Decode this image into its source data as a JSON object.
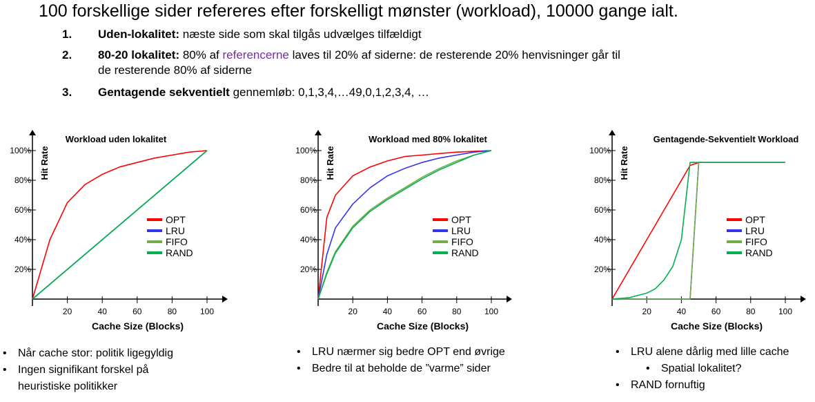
{
  "heading": "100 forskellige sider refereres efter forskelligt mønster (workload), 10000 gange ialt.",
  "list": [
    {
      "num": "1.",
      "bold": "Uden-lokalitet:",
      "text": " næste side som skal tilgås udvælges tilfældigt"
    },
    {
      "num": "2.",
      "bold": "80-20 lokalitet:",
      "text_a": " 80% af ",
      "link": "referencerne",
      "text_b": " laves til  20% af siderne: de resterende 20% henvisninger går til",
      "text_c": "de resterende 80% af siderne"
    },
    {
      "num": "3.",
      "bold": "Gentagende sekventielt",
      "text": " gennemløb:  0,1,3,4,…49,0,1,2,3,4, …"
    }
  ],
  "colors": {
    "OPT": "#ff0000",
    "LRU": "#3333ee",
    "FIFO": "#70ad47",
    "RAND": "#00b050",
    "link": "#7030a0"
  },
  "chart_data": [
    {
      "type": "line",
      "title": "Workload uden lokalitet",
      "xlabel": "Cache Size (Blocks)",
      "ylabel": "Hit Rate",
      "x_ticks": [
        "20",
        "40",
        "60",
        "80",
        "100"
      ],
      "y_ticks": [
        "20%",
        "40%",
        "60%",
        "80%",
        "100%"
      ],
      "xlim": [
        0,
        100
      ],
      "ylim": [
        0,
        100
      ],
      "legend": "right",
      "x": [
        0,
        10,
        20,
        30,
        40,
        50,
        60,
        70,
        80,
        90,
        100
      ],
      "series": [
        {
          "name": "OPT",
          "values": [
            0,
            40,
            65,
            77,
            84,
            89,
            92,
            95,
            97,
            99,
            100
          ]
        },
        {
          "name": "LRU",
          "values": [
            0,
            10,
            20,
            30,
            40,
            50,
            60,
            70,
            80,
            90,
            100
          ]
        },
        {
          "name": "FIFO",
          "values": [
            0,
            10,
            20,
            30,
            40,
            50,
            60,
            70,
            80,
            90,
            100
          ]
        },
        {
          "name": "RAND",
          "values": [
            0,
            10,
            20,
            30,
            40,
            50,
            60,
            70,
            80,
            90,
            100
          ]
        }
      ]
    },
    {
      "type": "line",
      "title": "Workload med 80% lokalitet",
      "xlabel": "Cache Size (Blocks)",
      "ylabel": "Hit Rate",
      "x_ticks": [
        "20",
        "40",
        "60",
        "80",
        "100"
      ],
      "y_ticks": [
        "20%",
        "40%",
        "60%",
        "80%",
        "100%"
      ],
      "xlim": [
        0,
        100
      ],
      "ylim": [
        0,
        100
      ],
      "legend": "right",
      "x": [
        0,
        5,
        10,
        20,
        30,
        40,
        50,
        60,
        70,
        80,
        90,
        100
      ],
      "series": [
        {
          "name": "OPT",
          "values": [
            0,
            55,
            70,
            83,
            89,
            93,
            96,
            97,
            98,
            99,
            99.5,
            100
          ]
        },
        {
          "name": "LRU",
          "values": [
            0,
            30,
            48,
            64,
            75,
            83,
            88,
            92,
            95,
            97,
            99,
            100
          ]
        },
        {
          "name": "FIFO",
          "values": [
            0,
            18,
            32,
            49,
            60,
            68,
            75,
            82,
            88,
            93,
            97,
            100
          ]
        },
        {
          "name": "RAND",
          "values": [
            0,
            17,
            31,
            48,
            59,
            67,
            74,
            81,
            87,
            92,
            97,
            100
          ]
        }
      ]
    },
    {
      "type": "line",
      "title": "Gentagende-Sekventielt Workload",
      "xlabel": "Cache Size (Blocks)",
      "ylabel": "Hit Rate",
      "x_ticks": [
        "20",
        "40",
        "60",
        "80",
        "100"
      ],
      "y_ticks": [
        "20%",
        "40%",
        "60%",
        "80%",
        "100%"
      ],
      "xlim": [
        0,
        100
      ],
      "ylim": [
        0,
        100
      ],
      "legend": "right",
      "x": [
        0,
        10,
        20,
        25,
        30,
        35,
        40,
        45,
        50,
        60,
        70,
        80,
        90,
        100
      ],
      "series": [
        {
          "name": "OPT",
          "values": [
            0,
            20,
            40,
            50,
            60,
            70,
            80,
            90,
            92,
            92,
            92,
            92,
            92,
            92
          ]
        },
        {
          "name": "LRU",
          "values": [
            0,
            0,
            0,
            0,
            0,
            0,
            0,
            0,
            92,
            92,
            92,
            92,
            92,
            92
          ]
        },
        {
          "name": "FIFO",
          "values": [
            0,
            0,
            0,
            0,
            0,
            0,
            0,
            0,
            92,
            92,
            92,
            92,
            92,
            92
          ]
        },
        {
          "name": "RAND",
          "values": [
            0,
            1,
            4,
            7,
            13,
            22,
            40,
            92,
            92,
            92,
            92,
            92,
            92,
            92
          ]
        }
      ]
    }
  ],
  "bullets": [
    [
      {
        "level": 1,
        "text": "Når cache stor: politik ligegyldig"
      },
      {
        "level": 1,
        "text": "Ingen signifikant forskel på"
      },
      {
        "level": 0,
        "text": "heuristiske politikker"
      }
    ],
    [
      {
        "level": 1,
        "text": "LRU nærmer sig bedre OPT end øvrige"
      },
      {
        "level": 1,
        "text": "Bedre til at beholde de ”varme” sider"
      }
    ],
    [
      {
        "level": 1,
        "text": "LRU alene dårlig med lille cache"
      },
      {
        "level": 2,
        "text": "Spatial lokalitet?"
      },
      {
        "level": 1,
        "text": "RAND fornuftig"
      }
    ]
  ]
}
